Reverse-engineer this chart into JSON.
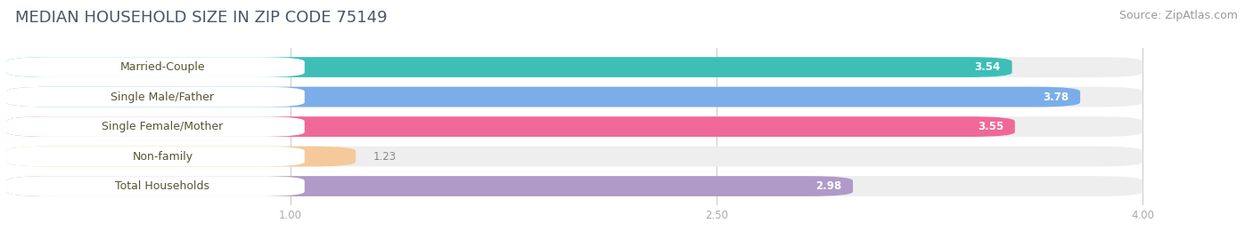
{
  "title": "MEDIAN HOUSEHOLD SIZE IN ZIP CODE 75149",
  "source": "Source: ZipAtlas.com",
  "categories": [
    "Married-Couple",
    "Single Male/Father",
    "Single Female/Mother",
    "Non-family",
    "Total Households"
  ],
  "values": [
    3.54,
    3.78,
    3.55,
    1.23,
    2.98
  ],
  "bar_colors": [
    "#3dbfb8",
    "#7baee8",
    "#f06898",
    "#f5c99a",
    "#b09ac8"
  ],
  "background_color": "#ffffff",
  "bar_bg_color": "#eeeeee",
  "xlim_max": 4.3,
  "data_max": 4.0,
  "xticks": [
    1.0,
    2.5,
    4.0
  ],
  "title_fontsize": 13,
  "source_fontsize": 9,
  "label_fontsize": 9,
  "value_fontsize": 8.5,
  "title_color": "#4a5568",
  "source_color": "#999999",
  "label_color": "#555533",
  "value_color_inside": "#ffffff",
  "value_color_outside": "#888888",
  "tick_color": "#aaaaaa"
}
